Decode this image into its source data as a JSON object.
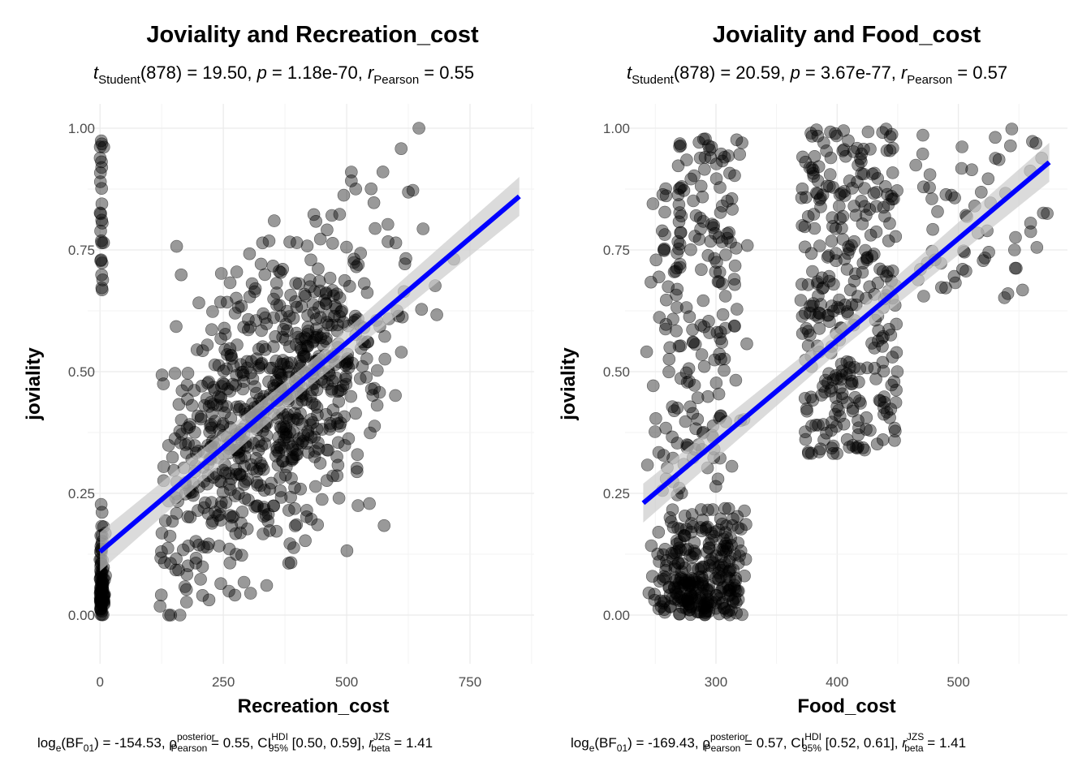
{
  "chart_data": [
    {
      "type": "scatter",
      "title": "Joviality and Recreation_cost",
      "subtitle": {
        "t_label": "t",
        "t_sub": "Student",
        "df_text": "(878)",
        "stat_text": " = 19.50, ",
        "p_label": "p",
        "p_text": " = 1.18e-70, ",
        "r_label": "r",
        "r_sub": "Pearson",
        "r_text": " = 0.55"
      },
      "xlabel": "Recreation_cost",
      "ylabel": "joviality",
      "xlim": [
        -25,
        880
      ],
      "ylim": [
        -0.1,
        1.05
      ],
      "x_ticks": [
        "0",
        "250",
        "500",
        "750"
      ],
      "x_tick_values": [
        0,
        250,
        500,
        750
      ],
      "y_ticks": [
        "0.00",
        "0.25",
        "0.50",
        "0.75",
        "1.00"
      ],
      "y_tick_values": [
        0,
        0.25,
        0.5,
        0.75,
        1.0
      ],
      "grid": true,
      "n_points": 880,
      "fit_line": {
        "x": [
          0,
          850
        ],
        "y": [
          0.13,
          0.86
        ],
        "color": "#0000ff",
        "band": true
      },
      "caption": {
        "bf_pre": "log",
        "bf_sub_e": "e",
        "bf_mid": "(BF",
        "bf_sub": "01",
        "bf_text": ") = -154.53, ",
        "rho": "ρ",
        "rho_sup": "posterior",
        "rho_sub": "Pearson",
        "rho_text": " = 0.55, CI",
        "ci_sup": "HDI",
        "ci_sub": "95%",
        "ci_text": " [0.50, 0.59], ",
        "rb": "r",
        "rb_sup": "JZS",
        "rb_sub": "beta",
        "rb_text": " = 1.41"
      },
      "point_color": "#000000",
      "point_alpha": 0.4
    },
    {
      "type": "scatter",
      "title": "Joviality and Food_cost",
      "subtitle": {
        "t_label": "t",
        "t_sub": "Student",
        "df_text": "(878)",
        "stat_text": " = 20.59, ",
        "p_label": "p",
        "p_text": " = 3.67e-77, ",
        "r_label": "r",
        "r_sub": "Pearson",
        "r_text": " = 0.57"
      },
      "xlabel": "Food_cost",
      "ylabel": "joviality",
      "xlim": [
        225,
        590
      ],
      "ylim": [
        -0.1,
        1.05
      ],
      "x_ticks": [
        "300",
        "400",
        "500"
      ],
      "x_tick_values": [
        300,
        400,
        500
      ],
      "y_ticks": [
        "0.00",
        "0.25",
        "0.50",
        "0.75",
        "1.00"
      ],
      "y_tick_values": [
        0,
        0.25,
        0.5,
        0.75,
        1.0
      ],
      "grid": true,
      "n_points": 880,
      "fit_line": {
        "x": [
          240,
          575
        ],
        "y": [
          0.23,
          0.93
        ],
        "color": "#0000ff",
        "band": true
      },
      "caption": {
        "bf_pre": "log",
        "bf_sub_e": "e",
        "bf_mid": "(BF",
        "bf_sub": "01",
        "bf_text": ") = -169.43, ",
        "rho": "ρ",
        "rho_sup": "posterior",
        "rho_sub": "Pearson",
        "rho_text": " = 0.57, CI",
        "ci_sup": "HDI",
        "ci_sub": "95%",
        "ci_text": " [0.52, 0.61], ",
        "rb": "r",
        "rb_sup": "JZS",
        "rb_sub": "beta",
        "rb_text": " = 1.41"
      },
      "point_color": "#000000",
      "point_alpha": 0.4
    }
  ]
}
